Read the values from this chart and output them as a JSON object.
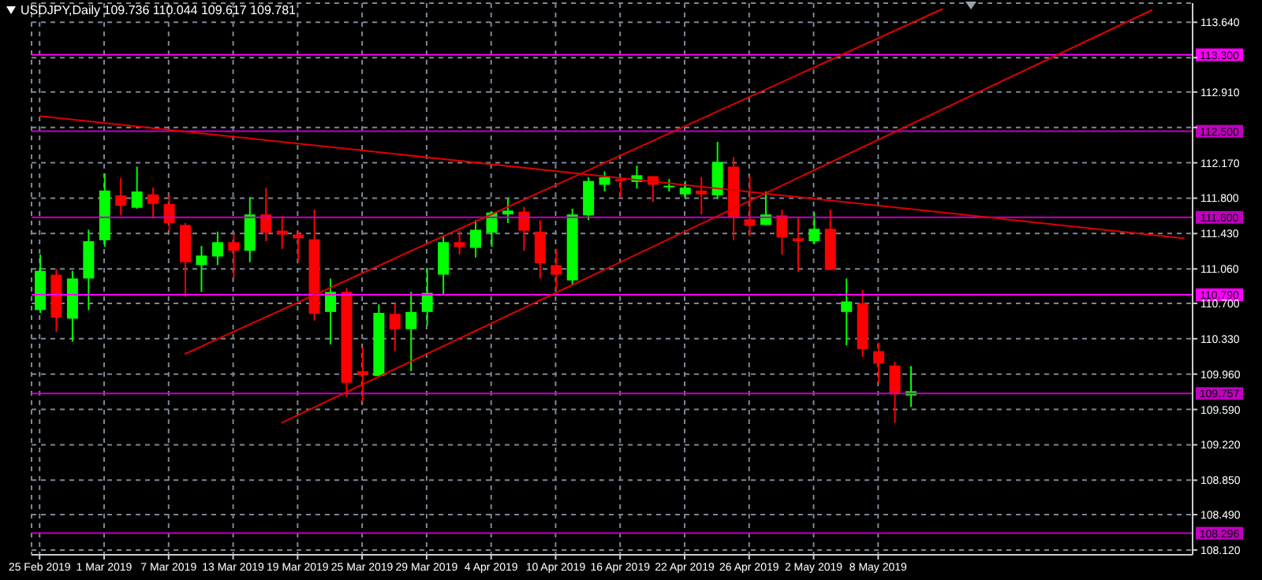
{
  "chart_data": {
    "type": "candlestick",
    "title": "USDJPY,Daily 109.736 110.044 109.617 109.781",
    "categories": [
      "25 Feb 2019",
      null,
      null,
      null,
      "1 Mar 2019",
      null,
      null,
      null,
      "7 Mar 2019",
      null,
      null,
      null,
      "13 Mar 2019",
      null,
      null,
      null,
      "19 Mar 2019",
      null,
      null,
      null,
      "25 Mar 2019",
      null,
      null,
      null,
      "29 Mar 2019",
      null,
      null,
      null,
      "4 Apr 2019",
      null,
      null,
      null,
      "10 Apr 2019",
      null,
      null,
      null,
      "16 Apr 2019",
      null,
      null,
      null,
      "22 Apr 2019",
      null,
      null,
      null,
      "26 Apr 2019",
      null,
      null,
      null,
      "2 May 2019",
      null,
      null,
      null,
      "8 May 2019",
      null,
      null,
      null,
      null,
      null,
      null,
      null,
      null,
      null,
      null,
      null,
      null,
      null,
      null,
      null,
      null,
      null,
      null,
      null
    ],
    "ohlc": [
      [
        110.63,
        111.21,
        110.6,
        111.04
      ],
      [
        111.0,
        111.06,
        110.4,
        110.55
      ],
      [
        110.54,
        111.04,
        110.3,
        110.96
      ],
      [
        110.96,
        111.47,
        110.63,
        111.35
      ],
      [
        111.36,
        112.06,
        111.29,
        111.88
      ],
      [
        111.83,
        112.01,
        111.62,
        111.72
      ],
      [
        111.7,
        112.13,
        111.69,
        111.87
      ],
      [
        111.84,
        111.91,
        111.59,
        111.74
      ],
      [
        111.74,
        111.84,
        111.46,
        111.54
      ],
      [
        111.52,
        111.54,
        110.77,
        111.13
      ],
      [
        111.1,
        111.3,
        110.82,
        111.2
      ],
      [
        111.19,
        111.45,
        111.1,
        111.34
      ],
      [
        111.34,
        111.43,
        110.97,
        111.25
      ],
      [
        111.25,
        111.81,
        111.13,
        111.63
      ],
      [
        111.63,
        111.91,
        111.35,
        111.44
      ],
      [
        111.46,
        111.61,
        111.27,
        111.42
      ],
      [
        111.42,
        111.46,
        111.14,
        111.38
      ],
      [
        111.37,
        111.68,
        110.52,
        110.59
      ],
      [
        110.61,
        110.96,
        110.27,
        110.82
      ],
      [
        110.82,
        110.86,
        109.72,
        109.87
      ],
      [
        109.99,
        110.24,
        109.67,
        109.95
      ],
      [
        109.94,
        110.69,
        109.93,
        110.6
      ],
      [
        110.59,
        110.7,
        110.2,
        110.43
      ],
      [
        110.43,
        110.82,
        109.99,
        110.61
      ],
      [
        110.61,
        111.07,
        110.47,
        110.81
      ],
      [
        111.0,
        111.41,
        110.79,
        111.34
      ],
      [
        111.34,
        111.46,
        111.21,
        111.29
      ],
      [
        111.28,
        111.57,
        111.18,
        111.47
      ],
      [
        111.44,
        111.66,
        111.29,
        111.65
      ],
      [
        111.63,
        111.8,
        111.54,
        111.67
      ],
      [
        111.66,
        111.71,
        111.25,
        111.46
      ],
      [
        111.45,
        111.57,
        110.96,
        111.12
      ],
      [
        111.1,
        111.26,
        110.84,
        111.0
      ],
      [
        110.94,
        111.69,
        110.89,
        111.63
      ],
      [
        111.62,
        112.02,
        111.57,
        111.98
      ],
      [
        111.94,
        112.08,
        111.87,
        112.02
      ],
      [
        112.0,
        112.02,
        111.81,
        111.98
      ],
      [
        111.97,
        112.14,
        111.9,
        112.04
      ],
      [
        112.03,
        112.03,
        111.76,
        111.94
      ],
      [
        111.92,
        112.0,
        111.87,
        111.93
      ],
      [
        111.84,
        111.98,
        111.79,
        111.91
      ],
      [
        111.88,
        112.02,
        111.63,
        111.84
      ],
      [
        111.83,
        112.39,
        111.79,
        112.18
      ],
      [
        112.13,
        112.23,
        111.36,
        111.6
      ],
      [
        111.58,
        112.03,
        111.4,
        111.51
      ],
      [
        111.52,
        111.87,
        111.52,
        111.63
      ],
      [
        111.62,
        111.68,
        111.21,
        111.39
      ],
      [
        111.38,
        111.59,
        111.03,
        111.35
      ],
      [
        111.35,
        111.65,
        111.32,
        111.48
      ],
      [
        111.48,
        111.68,
        111.05,
        111.05
      ],
      [
        110.61,
        110.96,
        110.26,
        110.72
      ],
      [
        110.7,
        110.84,
        110.14,
        110.22
      ],
      [
        110.2,
        110.29,
        109.87,
        110.07
      ],
      [
        110.05,
        110.09,
        109.45,
        109.75
      ],
      [
        109.736,
        110.044,
        109.617,
        109.781
      ],
      null,
      null,
      null,
      null,
      null,
      null,
      null,
      null,
      null,
      null,
      null,
      null,
      null,
      null,
      null,
      null,
      null
    ],
    "colors": [
      "#00ff00",
      "#ff0000",
      "#00ff00",
      "#00ff00",
      "#00ff00",
      "#ff0000",
      "#00ff00",
      "#ff0000",
      "#ff0000",
      "#ff0000",
      "#00ff00",
      "#00ff00",
      "#ff0000",
      "#00ff00",
      "#ff0000",
      "#ff0000",
      "#ff0000",
      "#ff0000",
      "#00ff00",
      "#ff0000",
      "#ff0000",
      "#00ff00",
      "#ff0000",
      "#00ff00",
      "#00ff00",
      "#00ff00",
      "#ff0000",
      "#00ff00",
      "#00ff00",
      "#00ff00",
      "#ff0000",
      "#ff0000",
      "#ff0000",
      "#00ff00",
      "#00ff00",
      "#00ff00",
      "#ff0000",
      "#00ff00",
      "#ff0000",
      "#00ff00",
      "#00ff00",
      "#ff0000",
      "#00ff00",
      "#ff0000",
      "#ff0000",
      "#00ff00",
      "#ff0000",
      "#ff0000",
      "#00ff00",
      "#ff0000",
      "#00ff00",
      "#ff0000",
      "#ff0000",
      "#ff0000",
      "#00ff00",
      null,
      null,
      null,
      null,
      null,
      null,
      null,
      null,
      null,
      null,
      null,
      null,
      null,
      null,
      null,
      null,
      null
    ],
    "series": [
      {
        "type": "line",
        "color": "#e00000",
        "values": [
          112.66,
          null,
          null,
          null,
          null,
          null,
          null,
          null,
          null,
          null,
          null,
          null,
          null,
          null,
          null,
          null,
          null,
          null,
          null,
          null,
          null,
          null,
          null,
          null,
          null,
          null,
          null,
          null,
          null,
          null,
          null,
          null,
          null,
          null,
          null,
          null,
          null,
          null,
          null,
          null,
          null,
          null,
          null,
          null,
          null,
          null,
          null,
          null,
          null,
          null,
          null,
          null,
          null,
          null,
          null,
          null,
          null,
          null,
          null,
          null,
          null,
          null,
          null,
          null,
          null,
          null,
          null,
          null,
          null,
          null,
          null,
          111.38
        ]
      },
      {
        "type": "line",
        "color": "#e00000",
        "values": [
          null,
          null,
          null,
          null,
          null,
          null,
          null,
          null,
          null,
          110.17,
          null,
          null,
          null,
          null,
          null,
          null,
          null,
          null,
          null,
          null,
          null,
          null,
          null,
          null,
          null,
          null,
          null,
          null,
          null,
          null,
          null,
          null,
          null,
          null,
          null,
          null,
          null,
          null,
          null,
          null,
          null,
          null,
          null,
          null,
          null,
          null,
          null,
          null,
          null,
          null,
          null,
          null,
          null,
          null,
          null,
          null,
          113.78,
          null,
          null,
          null,
          null,
          null,
          null,
          null,
          null,
          null,
          null,
          null,
          null,
          null,
          null,
          null
        ]
      },
      {
        "type": "line",
        "color": "#e00000",
        "values": [
          null,
          null,
          null,
          null,
          null,
          null,
          null,
          null,
          null,
          null,
          null,
          null,
          null,
          null,
          null,
          109.45,
          null,
          null,
          null,
          null,
          null,
          null,
          null,
          null,
          null,
          null,
          null,
          null,
          null,
          null,
          null,
          null,
          null,
          null,
          null,
          null,
          null,
          null,
          null,
          null,
          null,
          null,
          null,
          null,
          null,
          null,
          null,
          null,
          null,
          null,
          null,
          null,
          null,
          null,
          null,
          null,
          null,
          null,
          null,
          null,
          null,
          null,
          null,
          null,
          null,
          null,
          null,
          null,
          null,
          113.77,
          null,
          null
        ]
      }
    ],
    "ylim": [
      108.07,
      113.84
    ],
    "yticks": [
      {
        "value": 108.12,
        "label": "108.120"
      },
      {
        "value": 108.49,
        "label": "108.490"
      },
      {
        "value": 108.85,
        "label": "108.850"
      },
      {
        "value": 109.22,
        "label": "109.220"
      },
      {
        "value": 109.59,
        "label": "109.590"
      },
      {
        "value": 109.96,
        "label": "109.960"
      },
      {
        "value": 110.33,
        "label": "110.330"
      },
      {
        "value": 110.7,
        "label": "110.700"
      },
      {
        "value": 111.06,
        "label": "111.060"
      },
      {
        "value": 111.43,
        "label": "111.430"
      },
      {
        "value": 111.8,
        "label": "111.800"
      },
      {
        "value": 112.17,
        "label": "112.170"
      },
      {
        "value": 112.54,
        "label": null
      },
      {
        "value": 112.91,
        "label": "112.910"
      },
      {
        "value": 113.27,
        "label": null
      },
      {
        "value": 113.64,
        "label": "113.640"
      }
    ],
    "grid": true,
    "ref_lines": [
      {
        "axis": "y",
        "value": 113.3,
        "label": "113.300",
        "color": "#ff00ff"
      },
      {
        "axis": "y",
        "value": 112.5,
        "label": "112.500",
        "color": "#c000c0"
      },
      {
        "axis": "y",
        "value": 111.6,
        "label": "111.600",
        "color": "#c000c0"
      },
      {
        "axis": "y",
        "value": 110.79,
        "label": "110.790",
        "color": "#ff00ff"
      },
      {
        "axis": "y",
        "value": 109.757,
        "label": "109.757",
        "color": "#c000c0"
      },
      {
        "axis": "y",
        "value": 108.296,
        "label": "108.296",
        "color": "#c000c0"
      }
    ]
  }
}
